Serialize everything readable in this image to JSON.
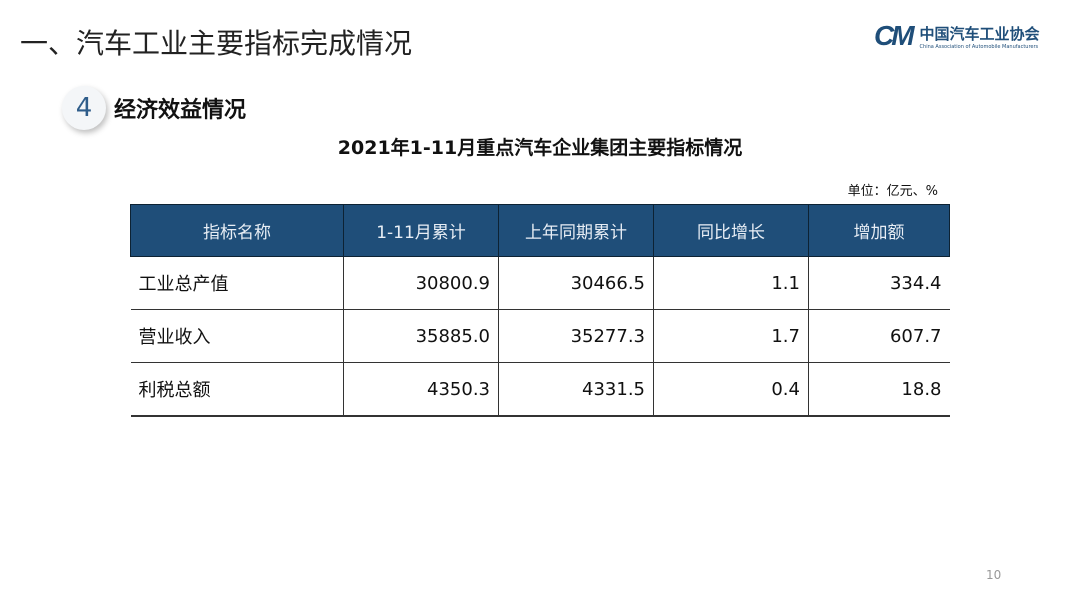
{
  "title": "一、汽车工业主要指标完成情况",
  "logo": {
    "mark": "CAAM",
    "cn": "中国汽车工业协会",
    "en": "China Association of Automobile Manufacturers"
  },
  "section": {
    "number": "4",
    "label": "经济效益情况"
  },
  "table_title": "2021年1-11月重点汽车企业集团主要指标情况",
  "unit": "单位：亿元、%",
  "headers": [
    "指标名称",
    "1-11月累计",
    "上年同期累计",
    "同比增长",
    "增加额"
  ],
  "rows": [
    [
      "工业总产值",
      "30800.9",
      "30466.5",
      "1.1",
      "334.4"
    ],
    [
      "营业收入",
      "35885.0",
      "35277.3",
      "1.7",
      "607.7"
    ],
    [
      "利税总额",
      "4350.3",
      "4331.5",
      "0.4",
      "18.8"
    ]
  ],
  "page_number": "10",
  "colors": {
    "header": "#1f4e79"
  }
}
